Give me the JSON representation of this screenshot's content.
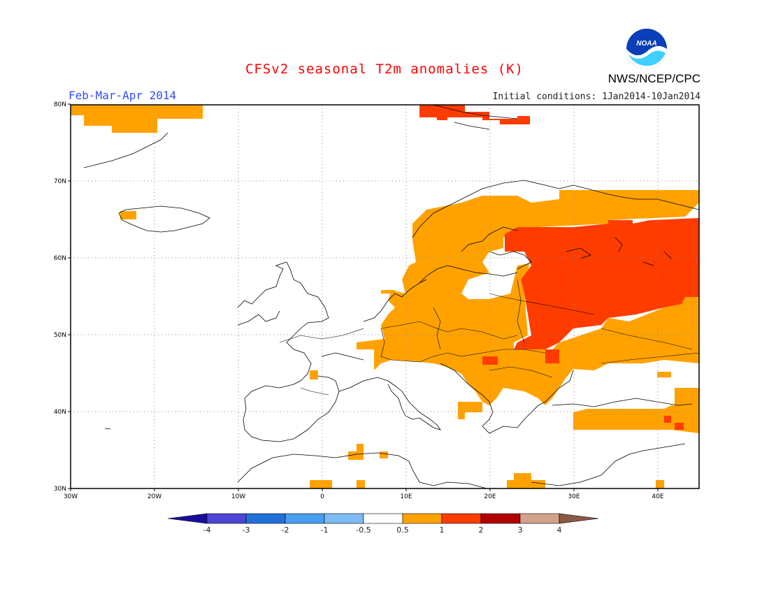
{
  "title": "CFSv2 seasonal T2m anomalies (K)",
  "season": "Feb-Mar-Apr 2014",
  "initial_conditions": "Initial conditions: 1Jan2014-10Jan2014",
  "agency": "NWS/NCEP/CPC",
  "logo_text": "NOAA",
  "map": {
    "lon_range": [
      -30,
      45
    ],
    "lat_range": [
      30,
      80
    ],
    "lon_ticks": [
      "30W",
      "20W",
      "10W",
      "0",
      "10E",
      "20E",
      "30E",
      "40E"
    ],
    "lat_ticks": [
      "30N",
      "40N",
      "50N",
      "60N",
      "70N",
      "80N"
    ],
    "gridlines": true
  },
  "colorbar": {
    "labels": [
      "-4",
      "-3",
      "-2",
      "-1",
      "-0.5",
      "0.5",
      "1",
      "2",
      "3",
      "4"
    ],
    "colors": [
      "#1a0d9c",
      "#4d45d6",
      "#2170d8",
      "#4a9df0",
      "#7dbbf5",
      "#ffffff",
      "#ffa200",
      "#ff3c00",
      "#b00000",
      "#d2a38a",
      "#8a5a44"
    ]
  },
  "anomaly_colors": {
    "0.5-1": "#ffa200",
    "1-2": "#ff3c00"
  }
}
